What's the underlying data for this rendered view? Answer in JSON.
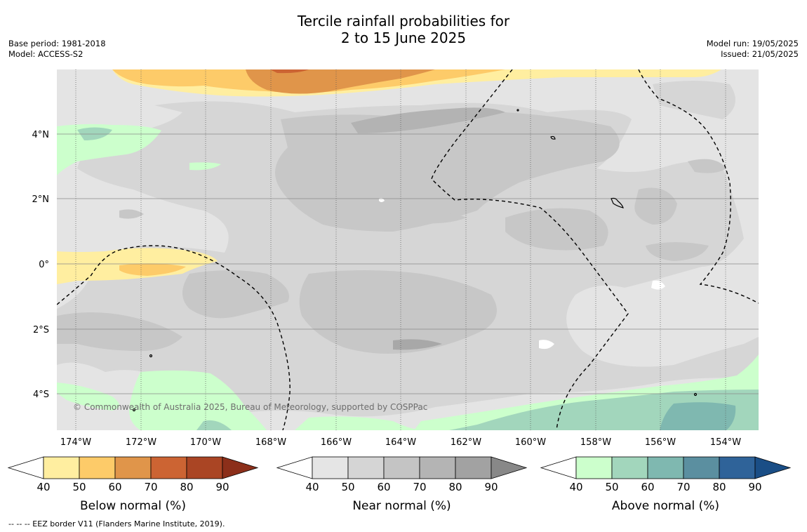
{
  "header": {
    "title_line1": "Tercile rainfall probabilities for",
    "title_line2": "2 to 15 June 2025",
    "base_period": "Base period: 1981-2018",
    "model": "Model: ACCESS-S2",
    "model_run": "Model run: 19/05/2025",
    "issued": "Issued: 21/05/2025"
  },
  "map": {
    "lon_labels": [
      "174°W",
      "172°W",
      "170°W",
      "168°W",
      "166°W",
      "164°W",
      "162°W",
      "160°W",
      "158°W",
      "156°W",
      "154°W"
    ],
    "lat_labels": [
      "4°N",
      "2°N",
      "0°",
      "2°S",
      "4°S"
    ],
    "copyright": "© Commonwealth of Australia 2025, Bureau of Meteorology, supported by COSPPac",
    "background_color": "#e4e4e4"
  },
  "colorbars": [
    {
      "title": "Below normal (%)",
      "ticks": [
        "40",
        "50",
        "60",
        "70",
        "80",
        "90"
      ],
      "colors": [
        "#ffeea0",
        "#fdcb69",
        "#e0954a",
        "#cc6433",
        "#aa4524",
        "#8c2f1a"
      ]
    },
    {
      "title": "Near normal (%)",
      "ticks": [
        "40",
        "50",
        "60",
        "70",
        "80",
        "90"
      ],
      "colors": [
        "#e5e5e5",
        "#d5d5d5",
        "#c4c4c4",
        "#b4b4b4",
        "#a2a2a2",
        "#888888"
      ]
    },
    {
      "title": "Above normal (%)",
      "ticks": [
        "40",
        "50",
        "60",
        "70",
        "80",
        "90"
      ],
      "colors": [
        "#ccffcc",
        "#a2d6bc",
        "#7fb8b0",
        "#5b8fa0",
        "#2f6399",
        "#1a4e86"
      ]
    }
  ],
  "footer": {
    "eez_note": "--  --  -- EEZ border V11 (Flanders Marine Institute, 2019)."
  }
}
